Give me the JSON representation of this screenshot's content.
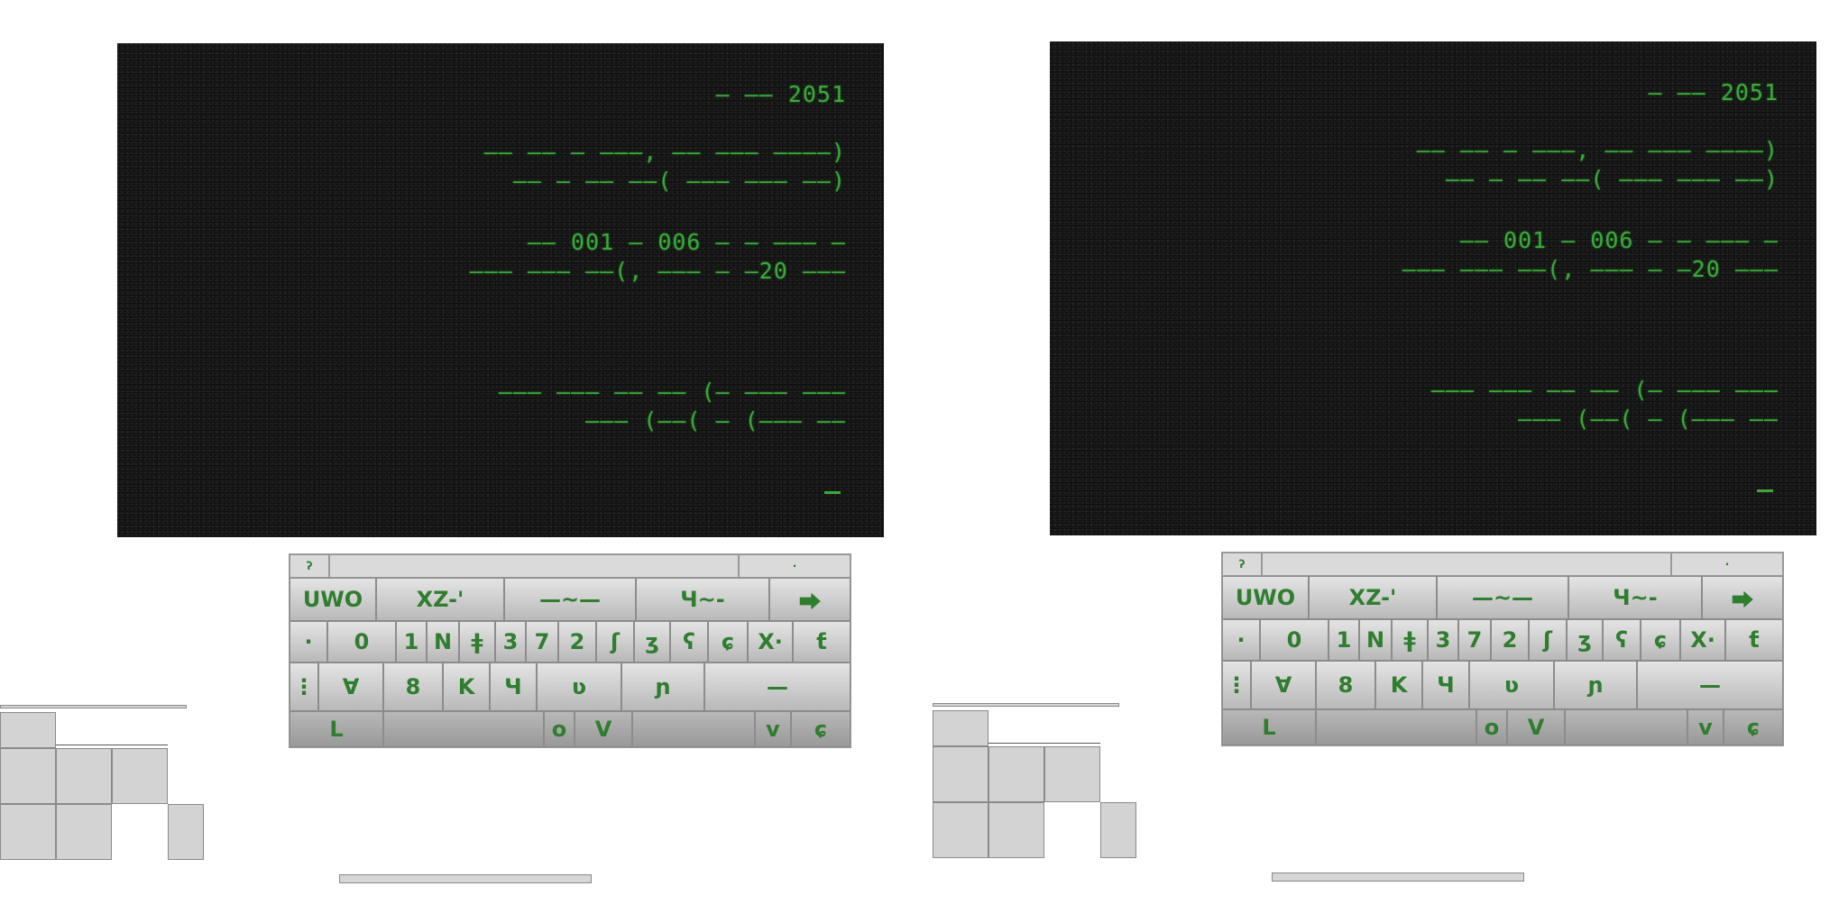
{
  "screen": {
    "lines": [
      "— —— 2051",
      "—— —— — ———, —— ——— ————)",
      "—— — —— ——( ——— ——— ——)",
      "—— 001 – 006 — — ——— —",
      "——— ——— ——(, ——— — –20 ———",
      "——— ——— —— —— (— ——— ———",
      "——— (——( — (——— ——"
    ]
  },
  "keyboard": {
    "title_left": "ʔ",
    "title_right": "·",
    "row1": [
      "UWO",
      "XZ-'",
      "—~—",
      "Ч~-",
      "⮕"
    ],
    "row2": [
      "·",
      "0",
      "1",
      "N",
      "ǂ",
      "3",
      "7",
      "2",
      "ʃ",
      "ʒ",
      "ʕ",
      "ɕ",
      "X·",
      "ƭ"
    ],
    "row3": [
      "⋮",
      "∀",
      "8",
      "K",
      "Ч",
      "ʋ",
      "ɲ",
      "—"
    ],
    "row4": [
      "L",
      "",
      "o",
      "V",
      "",
      "v",
      "ɕ"
    ]
  },
  "colors": {
    "screen_text": "#3aa83a",
    "screen_bg": "#0f0f0f",
    "key_face": "#cfcfcf"
  }
}
